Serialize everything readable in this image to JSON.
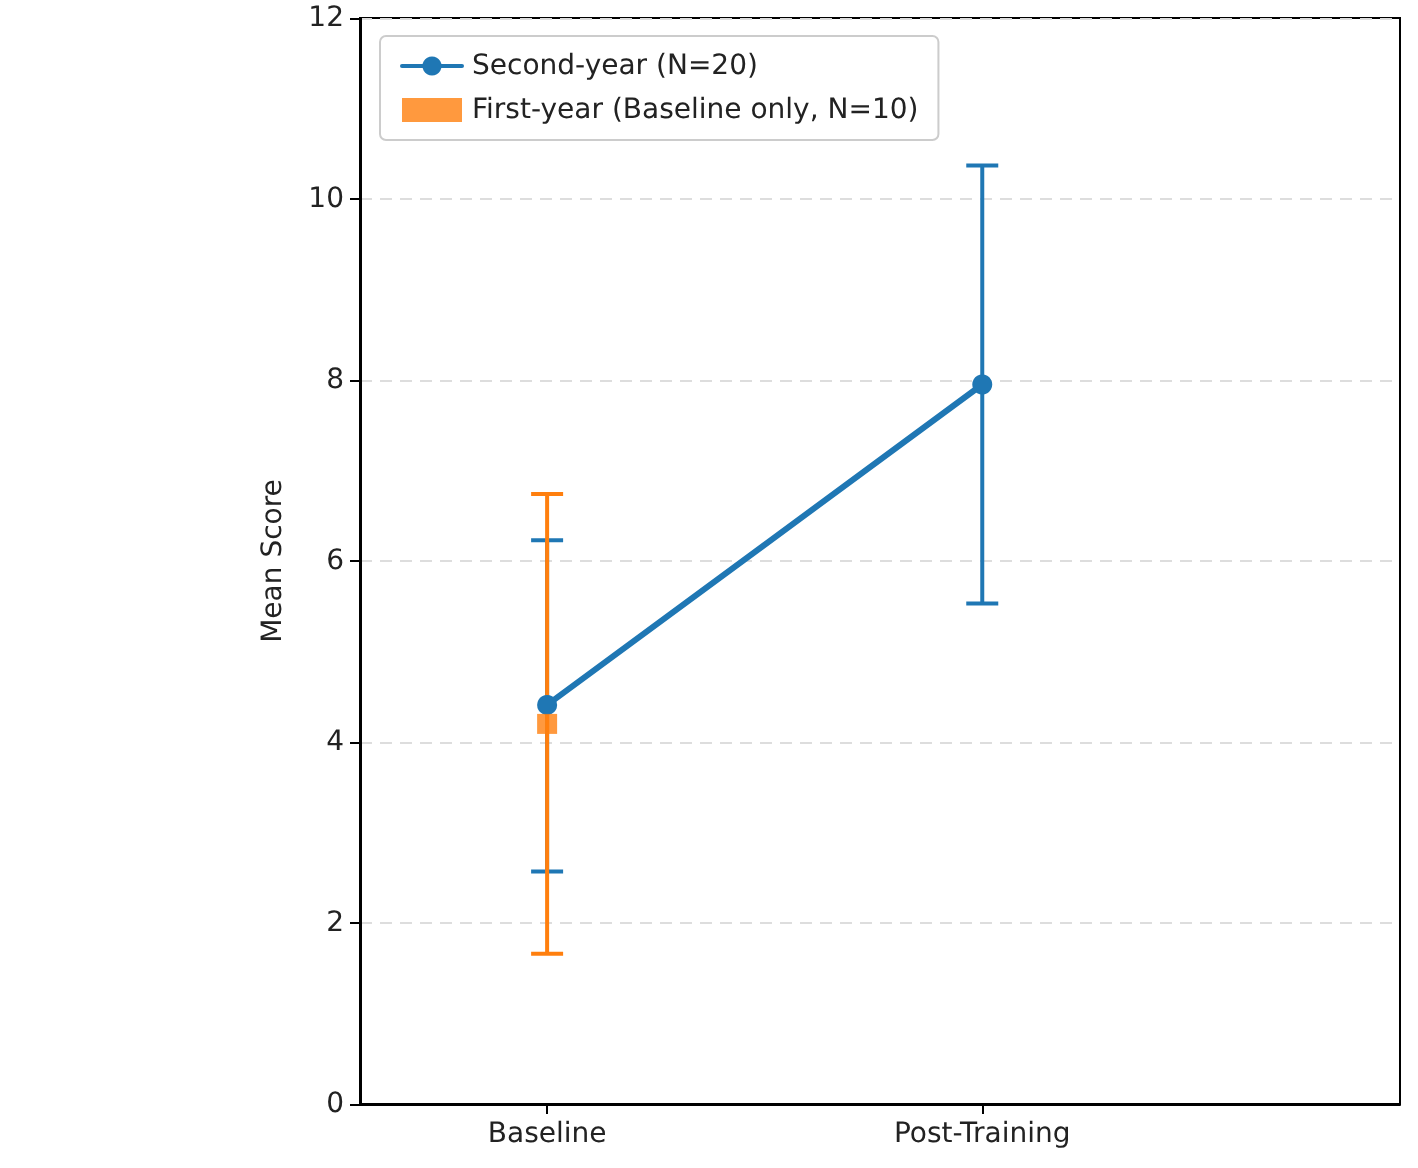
{
  "chart_data": {
    "type": "line",
    "ylabel": "Mean Score",
    "categories": [
      "Baseline",
      "Post-Training"
    ],
    "ylim": [
      0,
      12
    ],
    "yticks": [
      0,
      2,
      4,
      6,
      8,
      10,
      12
    ],
    "grid": "y",
    "legend": "top left",
    "series": [
      {
        "name": "Second-year (N=20)",
        "color": "#1f77b4",
        "marker": "circle",
        "values": [
          4.41,
          7.95
        ],
        "errors": [
          [
            2.57,
            6.23
          ],
          [
            5.53,
            10.37
          ]
        ]
      },
      {
        "name": "First-year (Baseline only, N=10)",
        "type": "scatter",
        "color": "#ff7f0e",
        "marker": "square",
        "values": [
          4.2,
          null
        ],
        "errors": [
          [
            1.66,
            6.74
          ],
          null
        ]
      }
    ]
  }
}
